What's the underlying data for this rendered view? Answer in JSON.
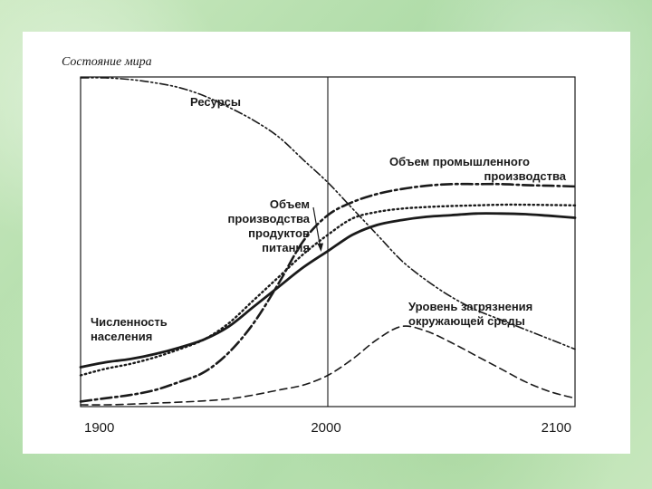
{
  "chart_data": {
    "type": "line",
    "title": "Состояние мира",
    "x_ticks": [
      "1900",
      "2000",
      "2100"
    ],
    "xlim": [
      1900,
      2100
    ],
    "ylim": [
      0,
      1
    ],
    "vline_x": 2000,
    "grid": false,
    "series": [
      {
        "name": "Ресурсы",
        "label_lines": [
          "Ресурсы"
        ],
        "style": "dashdotdot",
        "stroke_width": 1.6,
        "color": "#1a1a1a",
        "x": [
          1900,
          1910,
          1920,
          1930,
          1940,
          1950,
          1960,
          1970,
          1980,
          1990,
          2000,
          2010,
          2020,
          2030,
          2040,
          2050,
          2060,
          2070,
          2080,
          2090,
          2100
        ],
        "y": [
          1.0,
          1.0,
          0.995,
          0.985,
          0.97,
          0.945,
          0.91,
          0.87,
          0.82,
          0.75,
          0.68,
          0.6,
          0.52,
          0.44,
          0.38,
          0.33,
          0.29,
          0.26,
          0.23,
          0.2,
          0.17
        ]
      },
      {
        "name": "Объем промышленного производства",
        "label_lines": [
          "Объем промышленного",
          "производства"
        ],
        "style": "dashdot",
        "stroke_width": 2.6,
        "color": "#1a1a1a",
        "x": [
          1900,
          1910,
          1920,
          1930,
          1940,
          1950,
          1960,
          1970,
          1980,
          1990,
          2000,
          2010,
          2020,
          2030,
          2040,
          2050,
          2060,
          2070,
          2080,
          2090,
          2100
        ],
        "y": [
          0.01,
          0.02,
          0.03,
          0.045,
          0.07,
          0.1,
          0.16,
          0.25,
          0.37,
          0.5,
          0.58,
          0.62,
          0.645,
          0.66,
          0.67,
          0.675,
          0.675,
          0.675,
          0.672,
          0.67,
          0.668
        ]
      },
      {
        "name": "Объем производства продуктов питания",
        "label_lines": [
          "Объем",
          "производства",
          "продуктов",
          "питания"
        ],
        "style": "dotted",
        "stroke_width": 2.4,
        "color": "#1a1a1a",
        "x": [
          1900,
          1910,
          1920,
          1930,
          1940,
          1950,
          1960,
          1970,
          1980,
          1990,
          2000,
          2010,
          2020,
          2030,
          2040,
          2050,
          2060,
          2070,
          2080,
          2090,
          2100
        ],
        "y": [
          0.09,
          0.11,
          0.125,
          0.145,
          0.17,
          0.2,
          0.25,
          0.32,
          0.39,
          0.46,
          0.52,
          0.57,
          0.59,
          0.6,
          0.605,
          0.608,
          0.61,
          0.612,
          0.612,
          0.611,
          0.61
        ]
      },
      {
        "name": "Численность населения",
        "label_lines": [
          "Численность",
          "населения"
        ],
        "style": "solid",
        "stroke_width": 2.8,
        "color": "#1a1a1a",
        "x": [
          1900,
          1910,
          1920,
          1930,
          1940,
          1950,
          1960,
          1970,
          1980,
          1990,
          2000,
          2010,
          2020,
          2030,
          2040,
          2050,
          2060,
          2070,
          2080,
          2090,
          2100
        ],
        "y": [
          0.115,
          0.13,
          0.14,
          0.155,
          0.175,
          0.2,
          0.24,
          0.3,
          0.36,
          0.42,
          0.47,
          0.52,
          0.55,
          0.565,
          0.575,
          0.58,
          0.585,
          0.585,
          0.583,
          0.578,
          0.572
        ]
      },
      {
        "name": "Уровень загрязнения окружающей среды",
        "label_lines": [
          "Уровень загрязнения",
          "окружающей среды"
        ],
        "style": "dashed",
        "stroke_width": 1.6,
        "color": "#1a1a1a",
        "x": [
          1900,
          1910,
          1920,
          1930,
          1940,
          1950,
          1960,
          1970,
          1980,
          1990,
          2000,
          2010,
          2020,
          2030,
          2040,
          2050,
          2060,
          2070,
          2080,
          2090,
          2100
        ],
        "y": [
          0.0,
          0.0,
          0.002,
          0.005,
          0.008,
          0.012,
          0.018,
          0.03,
          0.045,
          0.06,
          0.09,
          0.14,
          0.2,
          0.24,
          0.225,
          0.19,
          0.15,
          0.11,
          0.07,
          0.04,
          0.02
        ]
      }
    ]
  },
  "colors": {
    "background": "#bfe3b4",
    "card": "#ffffff",
    "ink": "#1a1a1a"
  }
}
